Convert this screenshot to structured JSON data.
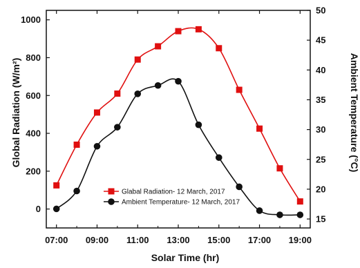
{
  "chart_data": {
    "type": "line",
    "title": "",
    "xlabel": "Solar Time (hr)",
    "ylabel_left": "Global Radiation (W/m²)",
    "ylabel_right": "Ambient Temperature (°C)",
    "x_ticks": [
      "07:00",
      "09:00",
      "11:00",
      "13:00",
      "15:00",
      "17:00",
      "19:00"
    ],
    "x_range": [
      6.5,
      19.5
    ],
    "y_left_range": [
      -100,
      1050
    ],
    "y_left_ticks": [
      0,
      200,
      400,
      600,
      800,
      1000
    ],
    "y_right_range": [
      13.5,
      50
    ],
    "y_right_ticks": [
      15,
      20,
      25,
      30,
      35,
      40,
      45,
      50
    ],
    "grid": false,
    "legend_position": "lower-center",
    "series": [
      {
        "name": "Glabal Radiation- 12 March, 2017",
        "axis": "left",
        "color": "#e01010",
        "marker": "square",
        "x": [
          7,
          8,
          9,
          10,
          11,
          12,
          13,
          14,
          15,
          16,
          17,
          18,
          19
        ],
        "values": [
          125,
          340,
          510,
          610,
          790,
          860,
          940,
          950,
          850,
          630,
          425,
          215,
          40
        ]
      },
      {
        "name": "Ambient Temperature- 12 March, 2017",
        "axis": "right",
        "color": "#111111",
        "marker": "circle",
        "x": [
          7,
          8,
          9,
          10,
          11,
          12,
          13,
          14,
          15,
          16,
          17,
          18,
          19
        ],
        "values": [
          16.7,
          19.7,
          27.2,
          30.4,
          36.0,
          37.4,
          38.1,
          30.8,
          25.3,
          20.4,
          16.4,
          15.7,
          15.7
        ]
      }
    ]
  }
}
